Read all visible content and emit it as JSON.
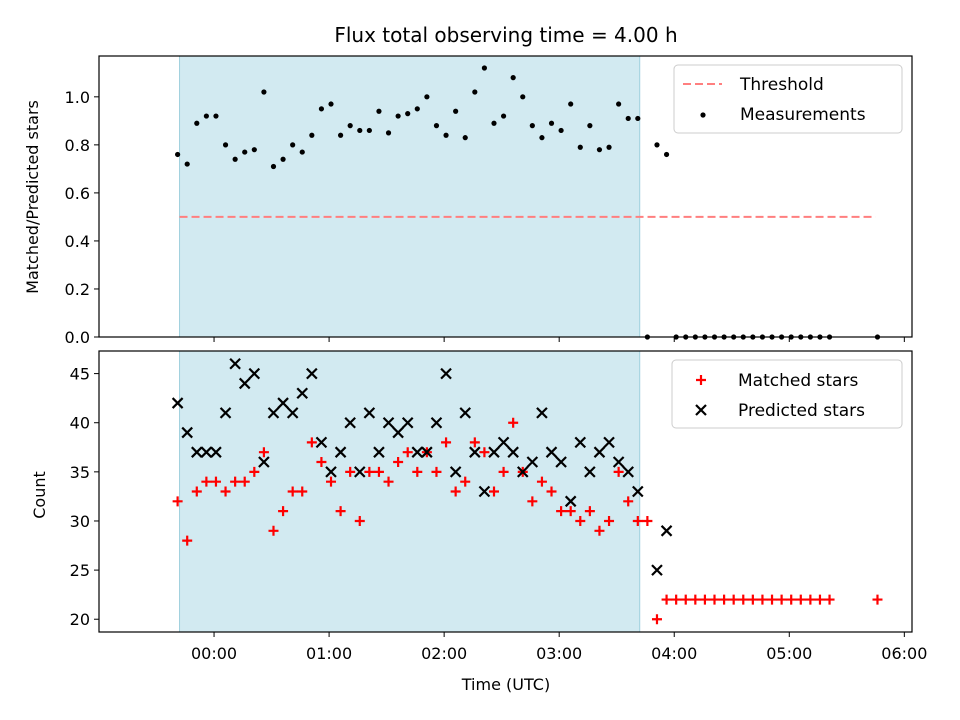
{
  "title": "Flux total observing time = 4.00 h",
  "colors": {
    "shade": "#add8e6",
    "threshold": "#ff7f7f",
    "matched": "#ff0000",
    "predicted": "#000000",
    "measurement": "#000000"
  },
  "chart_data": [
    {
      "type": "scatter",
      "ylabel": "Matched/Predicted stars",
      "xlim": [
        "23:00",
        "06:04"
      ],
      "ylim": [
        0,
        1.17
      ],
      "yticks": [
        0.0,
        0.2,
        0.4,
        0.6,
        0.8,
        1.0
      ],
      "ytick_labels": [
        "0.0",
        "0.2",
        "0.4",
        "0.6",
        "0.8",
        "1.0"
      ],
      "shaded_span": [
        "23:42",
        "03:42"
      ],
      "legend_position": "top-right",
      "threshold": {
        "name": "Threshold",
        "y": 0.5,
        "x_start": "23:42",
        "x_end": "05:45"
      },
      "series": [
        {
          "name": "Measurements",
          "points": [
            [
              "23:41",
              0.76
            ],
            [
              "23:46",
              0.72
            ],
            [
              "23:51",
              0.89
            ],
            [
              "23:56",
              0.92
            ],
            [
              "00:01",
              0.92
            ],
            [
              "00:06",
              0.8
            ],
            [
              "00:11",
              0.74
            ],
            [
              "00:16",
              0.77
            ],
            [
              "00:21",
              0.78
            ],
            [
              "00:26",
              1.02
            ],
            [
              "00:31",
              0.71
            ],
            [
              "00:36",
              0.74
            ],
            [
              "00:41",
              0.8
            ],
            [
              "00:46",
              0.77
            ],
            [
              "00:51",
              0.84
            ],
            [
              "00:56",
              0.95
            ],
            [
              "01:01",
              0.97
            ],
            [
              "01:06",
              0.84
            ],
            [
              "01:11",
              0.88
            ],
            [
              "01:16",
              0.86
            ],
            [
              "01:21",
              0.86
            ],
            [
              "01:26",
              0.94
            ],
            [
              "01:31",
              0.85
            ],
            [
              "01:36",
              0.92
            ],
            [
              "01:41",
              0.93
            ],
            [
              "01:46",
              0.95
            ],
            [
              "01:51",
              1.0
            ],
            [
              "01:56",
              0.88
            ],
            [
              "02:01",
              0.84
            ],
            [
              "02:06",
              0.94
            ],
            [
              "02:11",
              0.83
            ],
            [
              "02:16",
              1.02
            ],
            [
              "02:21",
              1.12
            ],
            [
              "02:26",
              0.89
            ],
            [
              "02:31",
              0.92
            ],
            [
              "02:36",
              1.08
            ],
            [
              "02:41",
              1.0
            ],
            [
              "02:46",
              0.88
            ],
            [
              "02:51",
              0.83
            ],
            [
              "02:56",
              0.89
            ],
            [
              "03:01",
              0.86
            ],
            [
              "03:06",
              0.97
            ],
            [
              "03:11",
              0.79
            ],
            [
              "03:16",
              0.88
            ],
            [
              "03:21",
              0.78
            ],
            [
              "03:26",
              0.79
            ],
            [
              "03:31",
              0.97
            ],
            [
              "03:36",
              0.91
            ],
            [
              "03:41",
              0.91
            ],
            [
              "03:46",
              0.0
            ],
            [
              "03:51",
              0.8
            ],
            [
              "03:56",
              0.76
            ],
            [
              "04:01",
              0.0
            ],
            [
              "04:06",
              0.0
            ],
            [
              "04:11",
              0.0
            ],
            [
              "04:16",
              0.0
            ],
            [
              "04:21",
              0.0
            ],
            [
              "04:26",
              0.0
            ],
            [
              "04:31",
              0.0
            ],
            [
              "04:36",
              0.0
            ],
            [
              "04:41",
              0.0
            ],
            [
              "04:46",
              0.0
            ],
            [
              "04:51",
              0.0
            ],
            [
              "04:56",
              0.0
            ],
            [
              "05:01",
              0.0
            ],
            [
              "05:06",
              0.0
            ],
            [
              "05:11",
              0.0
            ],
            [
              "05:16",
              0.0
            ],
            [
              "05:21",
              0.0
            ],
            [
              "05:46",
              0.0
            ]
          ]
        }
      ]
    },
    {
      "type": "scatter",
      "xlabel": "Time (UTC)",
      "ylabel": "Count",
      "xlim": [
        "23:00",
        "06:04"
      ],
      "ylim": [
        18.7,
        47.3
      ],
      "yticks": [
        20,
        25,
        30,
        35,
        40,
        45
      ],
      "ytick_labels": [
        "20",
        "25",
        "30",
        "35",
        "40",
        "45"
      ],
      "xticks": [
        "00:00",
        "01:00",
        "02:00",
        "03:00",
        "04:00",
        "05:00",
        "06:00"
      ],
      "xtick_labels": [
        "00:00",
        "01:00",
        "02:00",
        "03:00",
        "04:00",
        "05:00",
        "06:00"
      ],
      "shaded_span": [
        "23:42",
        "03:42"
      ],
      "legend_position": "top-right",
      "series": [
        {
          "name": "Matched stars",
          "points": [
            [
              "23:41",
              32
            ],
            [
              "23:46",
              28
            ],
            [
              "23:51",
              33
            ],
            [
              "23:56",
              34
            ],
            [
              "00:01",
              34
            ],
            [
              "00:06",
              33
            ],
            [
              "00:11",
              34
            ],
            [
              "00:16",
              34
            ],
            [
              "00:21",
              35
            ],
            [
              "00:26",
              37
            ],
            [
              "00:31",
              29
            ],
            [
              "00:36",
              31
            ],
            [
              "00:41",
              33
            ],
            [
              "00:46",
              33
            ],
            [
              "00:51",
              38
            ],
            [
              "00:56",
              36
            ],
            [
              "01:01",
              34
            ],
            [
              "01:06",
              31
            ],
            [
              "01:11",
              35
            ],
            [
              "01:16",
              30
            ],
            [
              "01:21",
              35
            ],
            [
              "01:26",
              35
            ],
            [
              "01:31",
              34
            ],
            [
              "01:36",
              36
            ],
            [
              "01:41",
              37
            ],
            [
              "01:46",
              35
            ],
            [
              "01:51",
              37
            ],
            [
              "01:56",
              35
            ],
            [
              "02:01",
              38
            ],
            [
              "02:06",
              33
            ],
            [
              "02:11",
              34
            ],
            [
              "02:16",
              38
            ],
            [
              "02:21",
              37
            ],
            [
              "02:26",
              33
            ],
            [
              "02:31",
              35
            ],
            [
              "02:36",
              40
            ],
            [
              "02:41",
              35
            ],
            [
              "02:46",
              32
            ],
            [
              "02:51",
              34
            ],
            [
              "02:56",
              33
            ],
            [
              "03:01",
              31
            ],
            [
              "03:06",
              31
            ],
            [
              "03:11",
              30
            ],
            [
              "03:16",
              31
            ],
            [
              "03:21",
              29
            ],
            [
              "03:26",
              30
            ],
            [
              "03:31",
              35
            ],
            [
              "03:36",
              32
            ],
            [
              "03:41",
              30
            ],
            [
              "03:46",
              30
            ],
            [
              "03:51",
              20
            ],
            [
              "03:56",
              22
            ],
            [
              "04:01",
              22
            ],
            [
              "04:06",
              22
            ],
            [
              "04:11",
              22
            ],
            [
              "04:16",
              22
            ],
            [
              "04:21",
              22
            ],
            [
              "04:26",
              22
            ],
            [
              "04:31",
              22
            ],
            [
              "04:36",
              22
            ],
            [
              "04:41",
              22
            ],
            [
              "04:46",
              22
            ],
            [
              "04:51",
              22
            ],
            [
              "04:56",
              22
            ],
            [
              "05:01",
              22
            ],
            [
              "05:06",
              22
            ],
            [
              "05:11",
              22
            ],
            [
              "05:16",
              22
            ],
            [
              "05:21",
              22
            ],
            [
              "05:46",
              22
            ]
          ]
        },
        {
          "name": "Predicted stars",
          "points": [
            [
              "23:41",
              42
            ],
            [
              "23:46",
              39
            ],
            [
              "23:51",
              37
            ],
            [
              "23:56",
              37
            ],
            [
              "00:01",
              37
            ],
            [
              "00:06",
              41
            ],
            [
              "00:11",
              46
            ],
            [
              "00:16",
              44
            ],
            [
              "00:21",
              45
            ],
            [
              "00:26",
              36
            ],
            [
              "00:31",
              41
            ],
            [
              "00:36",
              42
            ],
            [
              "00:41",
              41
            ],
            [
              "00:46",
              43
            ],
            [
              "00:51",
              45
            ],
            [
              "00:56",
              38
            ],
            [
              "01:01",
              35
            ],
            [
              "01:06",
              37
            ],
            [
              "01:11",
              40
            ],
            [
              "01:16",
              35
            ],
            [
              "01:21",
              41
            ],
            [
              "01:26",
              37
            ],
            [
              "01:31",
              40
            ],
            [
              "01:36",
              39
            ],
            [
              "01:41",
              40
            ],
            [
              "01:46",
              37
            ],
            [
              "01:51",
              37
            ],
            [
              "01:56",
              40
            ],
            [
              "02:01",
              45
            ],
            [
              "02:06",
              35
            ],
            [
              "02:11",
              41
            ],
            [
              "02:16",
              37
            ],
            [
              "02:21",
              33
            ],
            [
              "02:26",
              37
            ],
            [
              "02:31",
              38
            ],
            [
              "02:36",
              37
            ],
            [
              "02:41",
              35
            ],
            [
              "02:46",
              36
            ],
            [
              "02:51",
              41
            ],
            [
              "02:56",
              37
            ],
            [
              "03:01",
              36
            ],
            [
              "03:06",
              32
            ],
            [
              "03:11",
              38
            ],
            [
              "03:16",
              35
            ],
            [
              "03:21",
              37
            ],
            [
              "03:26",
              38
            ],
            [
              "03:31",
              36
            ],
            [
              "03:36",
              35
            ],
            [
              "03:41",
              33
            ],
            [
              "03:51",
              25
            ],
            [
              "03:56",
              29
            ]
          ]
        }
      ]
    }
  ]
}
